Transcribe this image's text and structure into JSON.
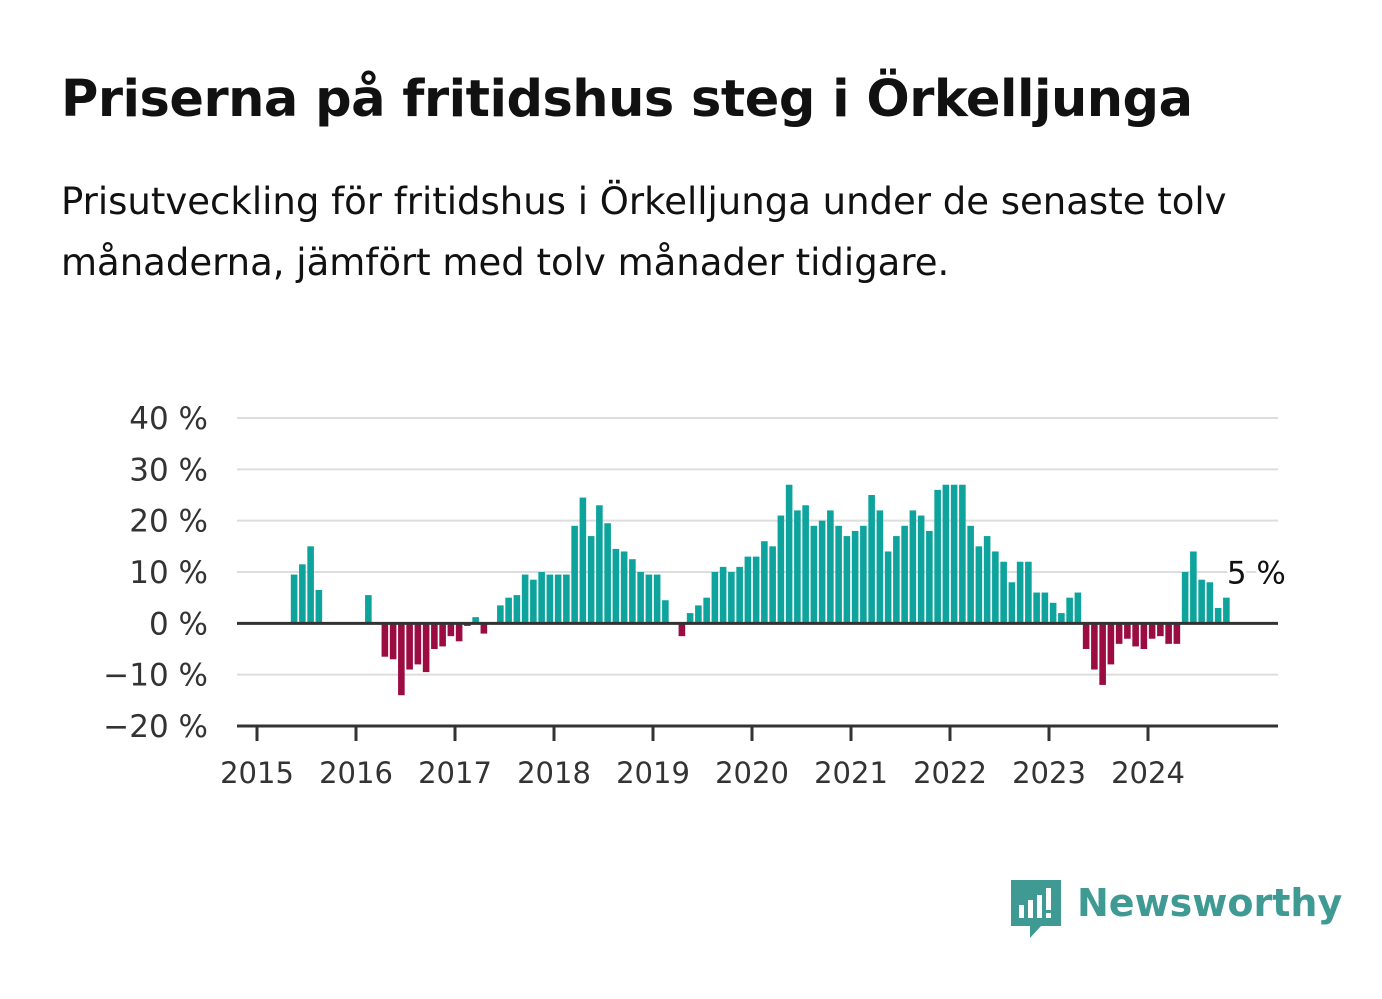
{
  "title": "Priserna på fritidshus steg i Örkelljunga",
  "subtitle": "Prisutveckling för fritidshus i Örkelljunga under de senaste tolv månaderna, jämfört med tolv månader tidigare.",
  "brand": {
    "name": "Newsworthy",
    "icon": "chat-bar-chart-icon"
  },
  "colors": {
    "positive": "#0fa39d",
    "negative": "#9b0c43",
    "grid": "#dddddd",
    "axis": "#333333"
  },
  "chart_data": {
    "type": "bar",
    "title": "Priserna på fritidshus steg i Örkelljunga",
    "xlabel": "",
    "ylabel": "",
    "ylim": [
      -20,
      40
    ],
    "yticks": [
      40,
      30,
      20,
      10,
      0,
      -10,
      -20
    ],
    "ytick_labels": [
      "40 %",
      "30 %",
      "20 %",
      "10 %",
      "0 %",
      "−10 %",
      "−20 %"
    ],
    "xtick_labels": [
      "2015",
      "2016",
      "2017",
      "2018",
      "2019",
      "2020",
      "2021",
      "2022",
      "2023",
      "2024"
    ],
    "grid": true,
    "legend": "none",
    "start": "2015-01",
    "last_label": "5 %",
    "values": [
      null,
      null,
      null,
      null,
      9.5,
      11.5,
      15.0,
      6.5,
      null,
      null,
      null,
      null,
      null,
      5.5,
      null,
      -6.5,
      -7.0,
      -14.0,
      -9.0,
      -8.0,
      -9.5,
      -5.0,
      -4.5,
      -2.5,
      -3.5,
      -0.5,
      1.2,
      -2.0,
      null,
      3.5,
      5.0,
      5.5,
      9.5,
      8.5,
      10.0,
      9.5,
      9.5,
      9.5,
      19.0,
      24.5,
      17.0,
      23.0,
      19.5,
      14.5,
      14.0,
      12.5,
      10.0,
      9.5,
      9.5,
      4.5,
      null,
      -2.5,
      2.0,
      3.5,
      5.0,
      10.0,
      11.0,
      10.0,
      11.0,
      13.0,
      13.0,
      16.0,
      15.0,
      21.0,
      27.0,
      22.0,
      23.0,
      19.0,
      20.0,
      22.0,
      19.0,
      17.0,
      18.0,
      19.0,
      25.0,
      22.0,
      14.0,
      17.0,
      19.0,
      22.0,
      21.0,
      18.0,
      26.0,
      27.0,
      27.0,
      27.0,
      19.0,
      15.0,
      17.0,
      14.0,
      12.0,
      8.0,
      12.0,
      12.0,
      6.0,
      6.0,
      4.0,
      2.0,
      5.0,
      6.0,
      -5.0,
      -9.0,
      -12.0,
      -8.0,
      -4.0,
      -3.0,
      -4.5,
      -5.0,
      -3.0,
      -2.5,
      -4.0,
      -4.0,
      10.0,
      14.0,
      8.5,
      8.0,
      3.0,
      5.0
    ]
  }
}
